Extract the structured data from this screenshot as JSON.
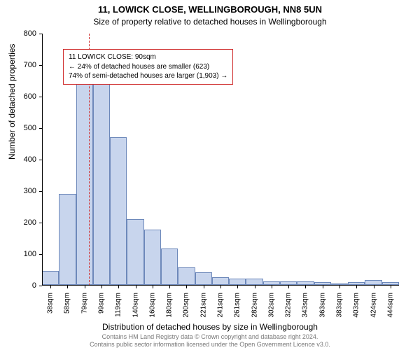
{
  "header": {
    "title": "11, LOWICK CLOSE, WELLINGBOROUGH, NN8 5UN",
    "subtitle": "Size of property relative to detached houses in Wellingborough"
  },
  "chart": {
    "type": "histogram",
    "bar_fill": "#c8d5ed",
    "bar_stroke": "#6d88ba",
    "background": "#ffffff",
    "axis_color": "#000000",
    "ylabel": "Number of detached properties",
    "xlabel": "Distribution of detached houses by size in Wellingborough",
    "label_fontsize": 12,
    "tick_fontsize": 11,
    "ylim": [
      0,
      800
    ],
    "yticks": [
      0,
      100,
      200,
      300,
      400,
      500,
      600,
      700,
      800
    ],
    "xticks": [
      "38sqm",
      "58sqm",
      "79sqm",
      "99sqm",
      "119sqm",
      "140sqm",
      "160sqm",
      "180sqm",
      "200sqm",
      "221sqm",
      "241sqm",
      "261sqm",
      "282sqm",
      "302sqm",
      "322sqm",
      "343sqm",
      "363sqm",
      "383sqm",
      "403sqm",
      "424sqm",
      "444sqm"
    ],
    "bins": [
      45,
      290,
      640,
      665,
      470,
      210,
      175,
      115,
      55,
      40,
      25,
      20,
      20,
      12,
      12,
      12,
      10,
      5,
      8,
      15,
      8
    ],
    "marker": {
      "bin_index_left_of": 3,
      "color": "#d03030"
    },
    "annotation": {
      "border_color": "#d03030",
      "line1": "11 LOWICK CLOSE: 90sqm",
      "line2": "← 24% of detached houses are smaller (623)",
      "line3": "74% of semi-detached houses are larger (1,903) →",
      "fontsize": 10
    }
  },
  "credit": {
    "line1": "Contains HM Land Registry data © Crown copyright and database right 2024.",
    "line2": "Contains public sector information licensed under the Open Government Licence v3.0."
  }
}
